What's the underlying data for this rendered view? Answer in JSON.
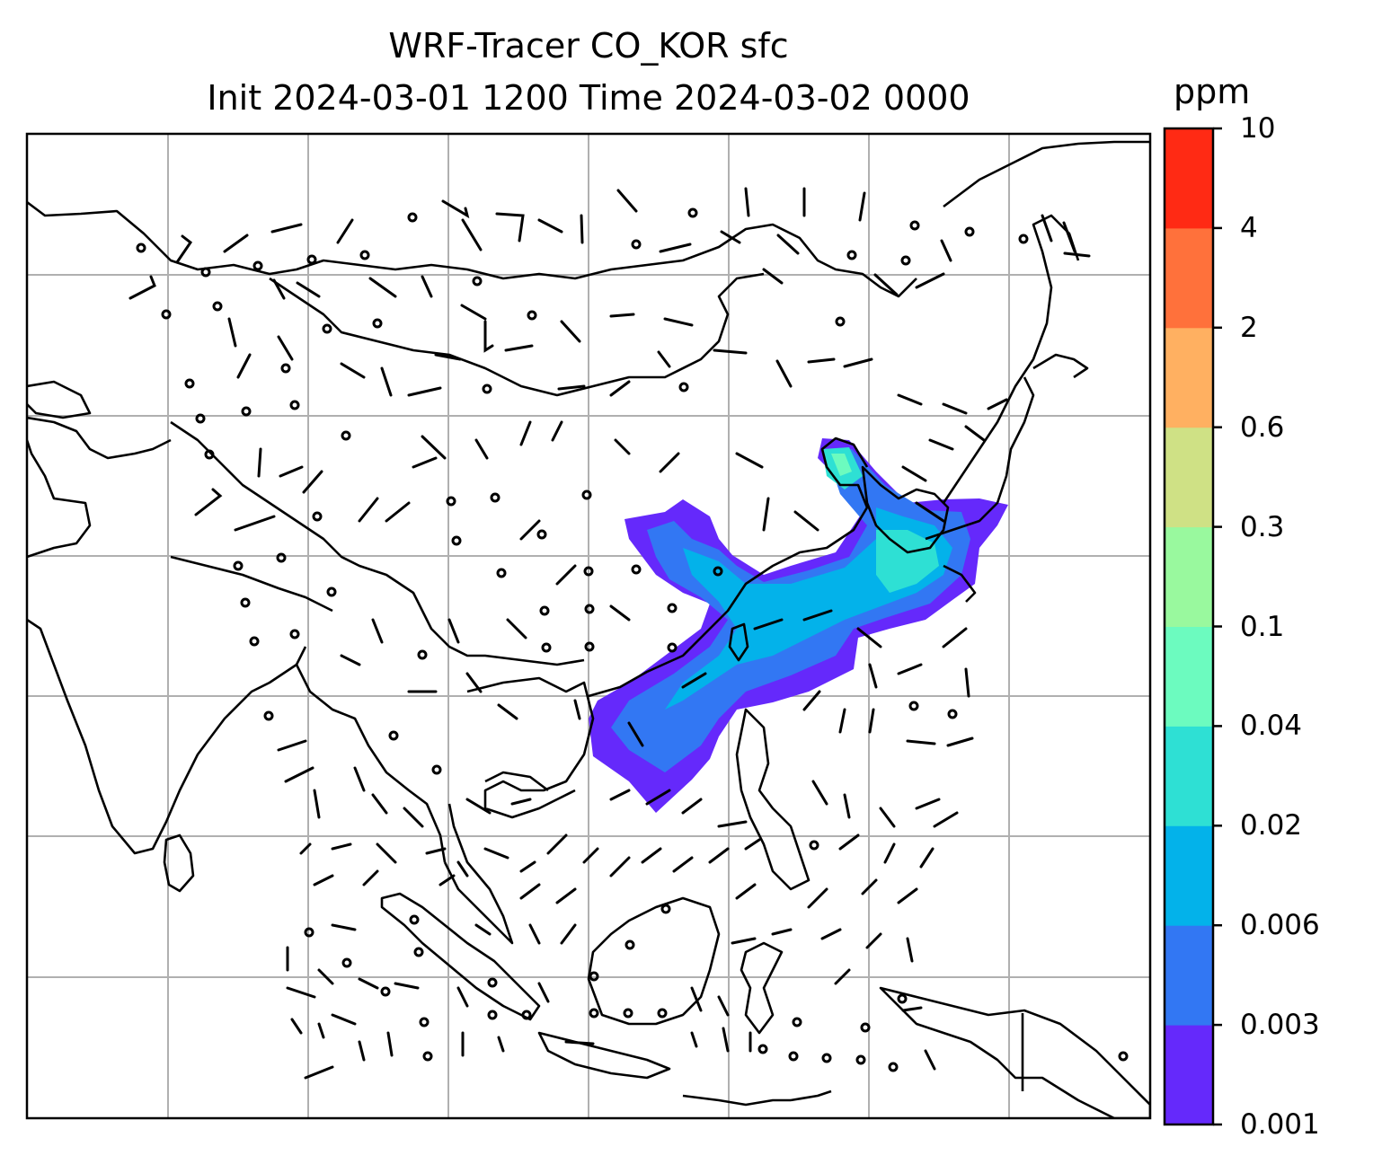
{
  "title": {
    "line1": "WRF-Tracer CO_KOR sfc",
    "line2": "Init 2024-03-01 1200 Time 2024-03-02 0000"
  },
  "colorbar": {
    "unit": "ppm",
    "ticks": [
      "0.001",
      "0.003",
      "0.006",
      "0.02",
      "0.04",
      "0.1",
      "0.3",
      "0.6",
      "2",
      "4",
      "10"
    ],
    "colors": [
      "#6529fb",
      "#3277f3",
      "#03b2ea",
      "#2ee0d4",
      "#6cfbbf",
      "#99f99e",
      "#cfe185",
      "#ffb061",
      "#ff713b",
      "#ff2a14"
    ]
  },
  "map": {
    "gridlines": true,
    "coastline_color": "#000000",
    "grid_color": "#b0b0b0"
  }
}
